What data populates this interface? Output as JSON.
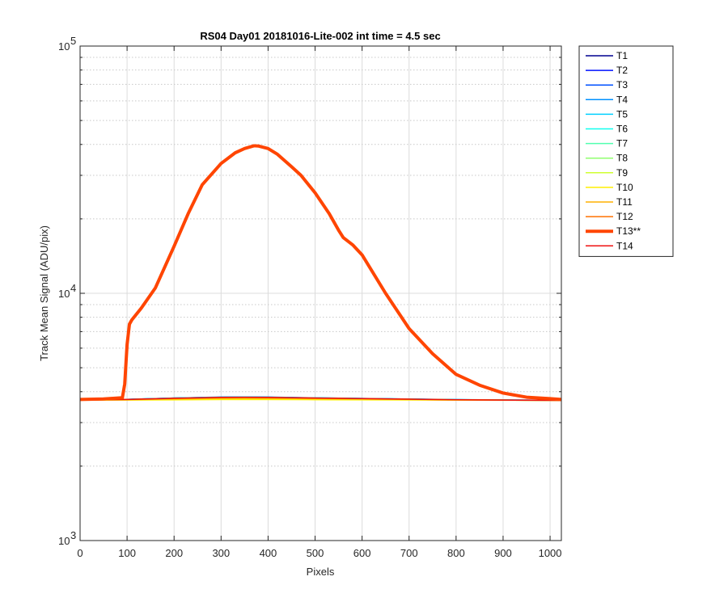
{
  "chart_data": {
    "type": "line",
    "title": "RS04 Day01 20181016-Lite-002 int time = 4.5 sec",
    "xlabel": "Pixels",
    "ylabel": "Track Mean Signal (ADU/pix)",
    "xlim": [
      0,
      1024
    ],
    "ylim": [
      1000,
      100000
    ],
    "yscale": "log",
    "grid": true,
    "legend_position": "outside-top-right",
    "x_ticks": [
      "0",
      "100",
      "200",
      "300",
      "400",
      "500",
      "600",
      "700",
      "800",
      "900",
      "1000"
    ],
    "y_ticks": [
      {
        "base": "10",
        "exp": "3"
      },
      {
        "base": "10",
        "exp": "4"
      },
      {
        "base": "10",
        "exp": "5"
      }
    ],
    "series": [
      {
        "name": "T1",
        "color": "#00008f",
        "width": 1.5,
        "x": [
          0,
          100,
          200,
          300,
          350,
          400,
          500,
          600,
          700,
          800,
          900,
          1024
        ],
        "y": [
          3700,
          3720,
          3760,
          3790,
          3795,
          3790,
          3770,
          3750,
          3730,
          3710,
          3700,
          3690
        ]
      },
      {
        "name": "T2",
        "color": "#0010ff",
        "width": 1.5,
        "x": [
          0,
          100,
          200,
          300,
          350,
          400,
          500,
          600,
          700,
          800,
          900,
          1024
        ],
        "y": [
          3700,
          3722,
          3765,
          3795,
          3800,
          3795,
          3772,
          3752,
          3732,
          3712,
          3702,
          3692
        ]
      },
      {
        "name": "T3",
        "color": "#0050ff",
        "width": 1.5,
        "x": [
          0,
          100,
          200,
          300,
          350,
          400,
          500,
          600,
          700,
          800,
          900,
          1024
        ],
        "y": [
          3700,
          3724,
          3770,
          3800,
          3805,
          3800,
          3775,
          3754,
          3734,
          3714,
          3702,
          3692
        ]
      },
      {
        "name": "T4",
        "color": "#0090ff",
        "width": 1.5,
        "x": [
          0,
          100,
          200,
          300,
          350,
          400,
          500,
          600,
          700,
          800,
          900,
          1024
        ],
        "y": [
          3700,
          3726,
          3772,
          3805,
          3810,
          3805,
          3778,
          3756,
          3736,
          3716,
          3703,
          3693
        ]
      },
      {
        "name": "T5",
        "color": "#00d0ff",
        "width": 1.5,
        "x": [
          0,
          100,
          200,
          300,
          350,
          400,
          500,
          600,
          700,
          800,
          900,
          1024
        ],
        "y": [
          3700,
          3725,
          3770,
          3800,
          3805,
          3800,
          3776,
          3755,
          3735,
          3715,
          3702,
          3692
        ]
      },
      {
        "name": "T6",
        "color": "#10ffef",
        "width": 1.5,
        "x": [
          0,
          100,
          200,
          300,
          350,
          400,
          500,
          600,
          700,
          800,
          900,
          1024
        ],
        "y": [
          3700,
          3722,
          3765,
          3792,
          3796,
          3792,
          3770,
          3752,
          3732,
          3712,
          3701,
          3691
        ]
      },
      {
        "name": "T7",
        "color": "#50ffaf",
        "width": 1.5,
        "x": [
          0,
          100,
          200,
          300,
          350,
          400,
          500,
          600,
          700,
          800,
          900,
          1024
        ],
        "y": [
          3700,
          3718,
          3755,
          3780,
          3784,
          3780,
          3762,
          3746,
          3728,
          3710,
          3700,
          3690
        ]
      },
      {
        "name": "T8",
        "color": "#90ff6f",
        "width": 1.5,
        "x": [
          0,
          100,
          200,
          300,
          350,
          400,
          500,
          600,
          700,
          800,
          900,
          1024
        ],
        "y": [
          3700,
          3714,
          3745,
          3768,
          3772,
          3768,
          3754,
          3740,
          3724,
          3708,
          3699,
          3690
        ]
      },
      {
        "name": "T9",
        "color": "#cfff30",
        "width": 1.5,
        "x": [
          0,
          100,
          200,
          300,
          350,
          400,
          500,
          600,
          700,
          800,
          900,
          1024
        ],
        "y": [
          3700,
          3706,
          3725,
          3742,
          3745,
          3742,
          3734,
          3726,
          3716,
          3704,
          3697,
          3690
        ]
      },
      {
        "name": "T10",
        "color": "#ffef00",
        "width": 1.5,
        "x": [
          0,
          100,
          200,
          300,
          350,
          400,
          500,
          600,
          700,
          800,
          900,
          1024
        ],
        "y": [
          3700,
          3700,
          3708,
          3716,
          3718,
          3716,
          3712,
          3708,
          3704,
          3698,
          3694,
          3690
        ]
      },
      {
        "name": "T11",
        "color": "#ffb000",
        "width": 1.5,
        "x": [
          0,
          100,
          200,
          300,
          350,
          400,
          500,
          600,
          700,
          800,
          900,
          1024
        ],
        "y": [
          3700,
          3712,
          3740,
          3760,
          3764,
          3760,
          3748,
          3736,
          3722,
          3708,
          3699,
          3690
        ]
      },
      {
        "name": "T12",
        "color": "#ff7000",
        "width": 1.5,
        "x": [
          0,
          100,
          200,
          300,
          350,
          400,
          500,
          600,
          700,
          800,
          900,
          1024
        ],
        "y": [
          3700,
          3720,
          3760,
          3790,
          3795,
          3790,
          3770,
          3750,
          3730,
          3712,
          3700,
          3692
        ]
      },
      {
        "name": "T14",
        "color": "#ef1010",
        "width": 1.5,
        "x": [
          0,
          100,
          200,
          300,
          350,
          400,
          500,
          600,
          700,
          800,
          900,
          1024
        ],
        "y": [
          3700,
          3722,
          3765,
          3795,
          3800,
          3795,
          3772,
          3752,
          3732,
          3712,
          3700,
          3690
        ]
      },
      {
        "name": "T13**",
        "color": "#ff4500",
        "width": 4,
        "x": [
          0,
          50,
          90,
          95,
          100,
          105,
          110,
          130,
          160,
          200,
          230,
          260,
          300,
          330,
          350,
          370,
          380,
          400,
          420,
          450,
          470,
          500,
          530,
          550,
          560,
          580,
          600,
          650,
          700,
          750,
          800,
          850,
          900,
          950,
          1000,
          1024
        ],
        "y": [
          3720,
          3740,
          3780,
          4300,
          6200,
          7500,
          7800,
          8700,
          10500,
          15500,
          21000,
          27500,
          33500,
          37000,
          38500,
          39500,
          39400,
          38500,
          36500,
          32500,
          30000,
          25500,
          21000,
          18000,
          16800,
          15700,
          14300,
          10000,
          7200,
          5700,
          4700,
          4250,
          3950,
          3800,
          3750,
          3720
        ]
      }
    ],
    "legend_order": [
      "T1",
      "T2",
      "T3",
      "T4",
      "T5",
      "T6",
      "T7",
      "T8",
      "T9",
      "T10",
      "T11",
      "T12",
      "T13**",
      "T14"
    ]
  }
}
